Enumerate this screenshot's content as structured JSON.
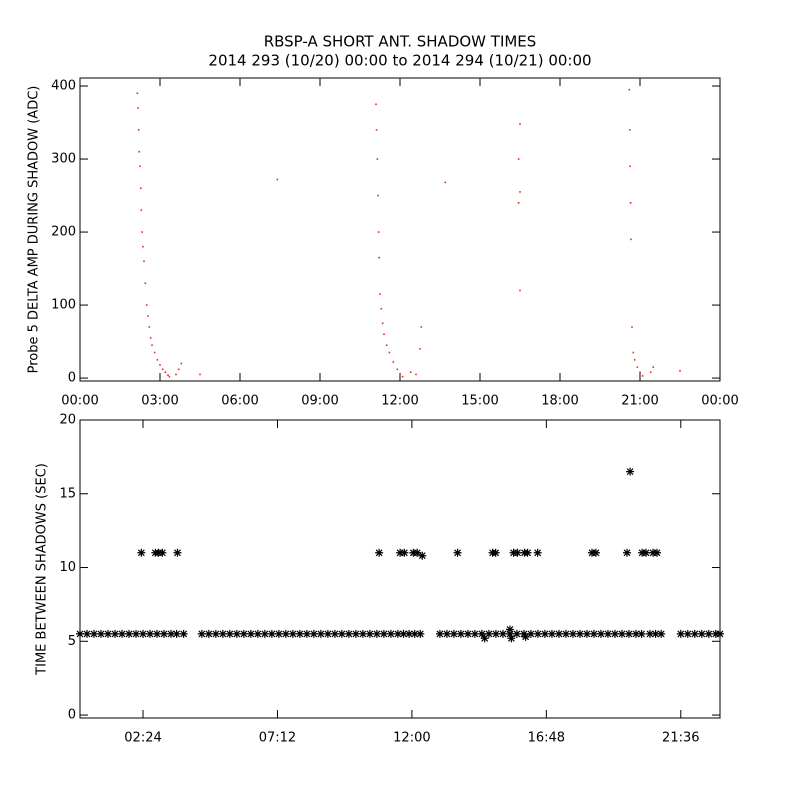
{
  "chart_data": [
    {
      "type": "scatter",
      "title": "RBSP-A SHORT ANT. SHADOW TIMES",
      "subtitle": "2014 293 (10/20) 00:00 to 2014 294 (10/21) 00:00",
      "y_label": "Probe 5 DELTA AMP DURING SHADOW (ADC)",
      "color": "#e0301c",
      "xlim": [
        0,
        24
      ],
      "ylim": [
        -4,
        411
      ],
      "xticks": [
        {
          "value": 0,
          "label": "00:00"
        },
        {
          "value": 3,
          "label": "03:00"
        },
        {
          "value": 6,
          "label": "06:00"
        },
        {
          "value": 9,
          "label": "09:00"
        },
        {
          "value": 12,
          "label": "12:00"
        },
        {
          "value": 15,
          "label": "15:00"
        },
        {
          "value": 18,
          "label": "18:00"
        },
        {
          "value": 21,
          "label": "21:00"
        },
        {
          "value": 24,
          "label": "00:00"
        }
      ],
      "yticks": [
        0,
        100,
        200,
        300,
        400
      ],
      "x": [
        2.15,
        2.18,
        2.2,
        2.22,
        2.25,
        2.28,
        2.3,
        2.33,
        2.36,
        2.4,
        2.45,
        2.5,
        2.55,
        2.6,
        2.65,
        2.7,
        2.8,
        2.9,
        3.0,
        3.1,
        3.2,
        3.3,
        3.35,
        3.6,
        3.7,
        3.8,
        4.5,
        7.4,
        11.1,
        11.12,
        11.15,
        11.18,
        11.2,
        11.22,
        11.25,
        11.3,
        11.35,
        11.4,
        11.5,
        11.6,
        11.75,
        11.9,
        12.0,
        12.1,
        12.4,
        12.6,
        12.8,
        12.75,
        13.7,
        16.5,
        16.45,
        16.5,
        16.45,
        16.5,
        20.6,
        20.62,
        20.63,
        20.65,
        20.66,
        20.7,
        20.75,
        20.8,
        20.9,
        21.0,
        21.1,
        21.4,
        21.5,
        22.5
      ],
      "values": [
        390,
        370,
        340,
        310,
        290,
        260,
        230,
        200,
        180,
        160,
        130,
        100,
        85,
        70,
        55,
        45,
        35,
        25,
        18,
        12,
        8,
        4,
        2,
        5,
        12,
        20,
        5,
        272,
        375,
        340,
        300,
        250,
        200,
        165,
        115,
        95,
        75,
        60,
        45,
        35,
        22,
        12,
        6,
        2,
        8,
        5,
        70,
        40,
        268,
        348,
        300,
        255,
        240,
        120,
        395,
        340,
        290,
        240,
        190,
        70,
        35,
        25,
        15,
        8,
        3,
        8,
        15,
        10
      ]
    },
    {
      "type": "star-scatter",
      "y_label": "TIME BETWEEN SHADOWS (SEC)",
      "color": "#000000",
      "xlim": [
        0.15,
        23.0
      ],
      "ylim": [
        -0.2,
        20
      ],
      "xticks": [
        {
          "value": 2.4,
          "label": "02:24"
        },
        {
          "value": 7.2,
          "label": "07:12"
        },
        {
          "value": 12,
          "label": "12:00"
        },
        {
          "value": 16.8,
          "label": "16:48"
        },
        {
          "value": 21.6,
          "label": "21:36"
        }
      ],
      "yticks": [
        0,
        5,
        10,
        15,
        20
      ],
      "x": [
        0.15,
        0.4,
        0.65,
        0.9,
        1.15,
        1.4,
        1.65,
        1.9,
        2.15,
        2.4,
        2.65,
        2.9,
        3.15,
        3.4,
        3.6,
        3.85,
        4.5,
        4.75,
        5,
        5.25,
        5.5,
        5.75,
        6,
        6.25,
        6.5,
        6.75,
        7,
        7.25,
        7.5,
        7.75,
        8,
        8.25,
        8.5,
        8.75,
        9,
        9.25,
        9.5,
        9.75,
        10,
        10.25,
        10.5,
        10.75,
        11,
        11.25,
        11.5,
        11.7,
        11.9,
        12.1,
        12.3,
        13,
        13.25,
        13.5,
        13.75,
        14,
        14.25,
        14.5,
        14.75,
        15,
        15.25,
        15.5,
        15.75,
        16,
        16.25,
        16.5,
        16.75,
        17,
        17.25,
        17.5,
        17.75,
        18,
        18.25,
        18.5,
        18.75,
        19,
        19.25,
        19.5,
        19.75,
        20,
        20.2,
        20.5,
        20.7,
        20.9,
        21.6,
        21.85,
        22.1,
        22.35,
        22.6,
        22.85,
        23.0,
        2.34,
        2.84,
        2.95,
        3.09,
        3.63,
        10.83,
        11.58,
        11.73,
        12.05,
        12.19,
        12.37,
        13.63,
        14.88,
        14.99,
        15.63,
        15.77,
        16.02,
        16.13,
        16.49,
        18.43,
        18.57,
        19.68,
        19.79,
        20.22,
        20.36,
        20.61,
        20.75,
        14.6,
        15.5,
        15.55,
        16.06
      ],
      "values": [
        5.5,
        5.5,
        5.5,
        5.5,
        5.5,
        5.5,
        5.5,
        5.5,
        5.5,
        5.5,
        5.5,
        5.5,
        5.5,
        5.5,
        5.5,
        5.5,
        5.5,
        5.5,
        5.5,
        5.5,
        5.5,
        5.5,
        5.5,
        5.5,
        5.5,
        5.5,
        5.5,
        5.5,
        5.5,
        5.5,
        5.5,
        5.5,
        5.5,
        5.5,
        5.5,
        5.5,
        5.5,
        5.5,
        5.5,
        5.5,
        5.5,
        5.5,
        5.5,
        5.5,
        5.5,
        5.5,
        5.5,
        5.5,
        5.5,
        5.5,
        5.5,
        5.5,
        5.5,
        5.5,
        5.5,
        5.5,
        5.5,
        5.5,
        5.5,
        5.5,
        5.5,
        5.5,
        5.5,
        5.5,
        5.5,
        5.5,
        5.5,
        5.5,
        5.5,
        5.5,
        5.5,
        5.5,
        5.5,
        5.5,
        5.5,
        5.5,
        5.5,
        5.5,
        5.5,
        5.5,
        5.5,
        5.5,
        5.5,
        5.5,
        5.5,
        5.5,
        5.5,
        5.5,
        5.5,
        11,
        11,
        11,
        11,
        11,
        11,
        11,
        11,
        11,
        11,
        10.8,
        11,
        11,
        11,
        11,
        11,
        11,
        11,
        11,
        11,
        11,
        11,
        16.5,
        11,
        11,
        11,
        11,
        5.2,
        5.8,
        5.2,
        5.3
      ]
    }
  ]
}
